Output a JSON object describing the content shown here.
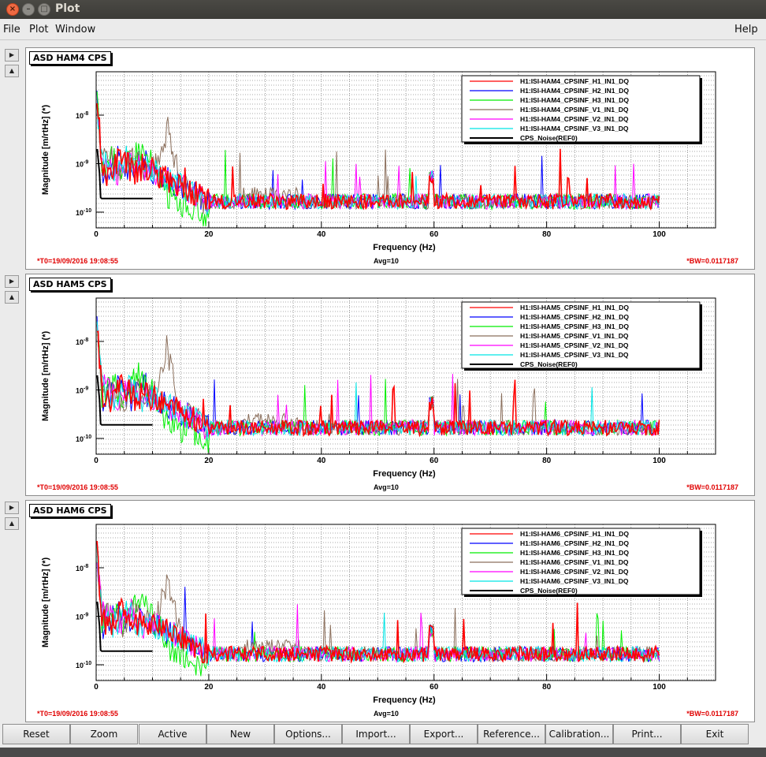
{
  "window": {
    "title": "Plot"
  },
  "menu": {
    "file": "File",
    "plot": "Plot",
    "window": "Window",
    "help": "Help"
  },
  "colors": {
    "H1": "#ff0000",
    "H2": "#0000ff",
    "H3": "#00ee00",
    "V1": "#8b6f5c",
    "V2": "#ff00ff",
    "V3": "#00e5e5",
    "REF": "#000000"
  },
  "panels": [
    {
      "title": "ASD HAM4 CPS",
      "t0": "*T0=19/09/2016 19:08:55",
      "avg": "Avg=10",
      "bw": "*BW=0.0117187",
      "legend": [
        "H1:ISI-HAM4_CPSINF_H1_IN1_DQ",
        "H1:ISI-HAM4_CPSINF_H2_IN1_DQ",
        "H1:ISI-HAM4_CPSINF_H3_IN1_DQ",
        "H1:ISI-HAM4_CPSINF_V1_IN1_DQ",
        "H1:ISI-HAM4_CPSINF_V2_IN1_DQ",
        "H1:ISI-HAM4_CPSINF_V3_IN1_DQ",
        "CPS_Noise(REF0)"
      ]
    },
    {
      "title": "ASD HAM5 CPS",
      "t0": "*T0=19/09/2016 19:08:55",
      "avg": "Avg=10",
      "bw": "*BW=0.0117187",
      "legend": [
        "H1:ISI-HAM5_CPSINF_H1_IN1_DQ",
        "H1:ISI-HAM5_CPSINF_H2_IN1_DQ",
        "H1:ISI-HAM5_CPSINF_H3_IN1_DQ",
        "H1:ISI-HAM5_CPSINF_V1_IN1_DQ",
        "H1:ISI-HAM5_CPSINF_V2_IN1_DQ",
        "H1:ISI-HAM5_CPSINF_V3_IN1_DQ",
        "CPS_Noise(REF0)"
      ]
    },
    {
      "title": "ASD HAM6 CPS",
      "t0": "*T0=19/09/2016 19:08:55",
      "avg": "Avg=10",
      "bw": "*BW=0.0117187",
      "legend": [
        "H1:ISI-HAM6_CPSINF_H1_IN1_DQ",
        "H1:ISI-HAM6_CPSINF_H2_IN1_DQ",
        "H1:ISI-HAM6_CPSINF_H3_IN1_DQ",
        "H1:ISI-HAM6_CPSINF_V1_IN1_DQ",
        "H1:ISI-HAM6_CPSINF_V2_IN1_DQ",
        "H1:ISI-HAM6_CPSINF_V3_IN1_DQ",
        "CPS_Noise(REF0)"
      ]
    }
  ],
  "axes": {
    "xlabel": "Frequency (Hz)",
    "ylabel": "Magnitude [m/rtHz] (*)",
    "xticks": [
      "0",
      "20",
      "40",
      "60",
      "80",
      "100"
    ],
    "ytick_base": "10",
    "ytick_exps": [
      "-8",
      "-9",
      "-10"
    ]
  },
  "chart_data": [
    {
      "type": "line",
      "title": "ASD HAM4 CPS",
      "xlabel": "Frequency (Hz)",
      "ylabel": "Magnitude [m/rtHz] (*)",
      "xlim": [
        0,
        110
      ],
      "ylog": true,
      "grid": true,
      "legend_position": "top-right",
      "series": [
        {
          "name": "H1:ISI-HAM4_CPSINF_H1_IN1_DQ",
          "x": [
            0.2,
            2,
            5,
            8,
            10,
            12,
            15,
            18,
            20,
            30,
            40,
            60,
            80,
            100
          ],
          "y": [
            4e-08,
            8e-10,
            7e-10,
            5e-10,
            3e-10,
            2e-10,
            2e-10,
            2e-10,
            1.5e-10,
            1.5e-10,
            1.5e-10,
            1.5e-10,
            1.5e-10,
            1.5e-10
          ]
        },
        {
          "name": "CPS_Noise(REF0)",
          "x": [
            0.2,
            1,
            10,
            20
          ],
          "y": [
            2e-09,
            2e-10,
            2e-10,
            2e-10
          ]
        }
      ]
    },
    {
      "type": "line",
      "title": "ASD HAM5 CPS",
      "xlabel": "Frequency (Hz)",
      "ylabel": "Magnitude [m/rtHz] (*)",
      "xlim": [
        0,
        110
      ],
      "ylog": true,
      "grid": true,
      "legend_position": "top-right",
      "series": [
        {
          "name": "H1:ISI-HAM5_CPSINF_H1_IN1_DQ",
          "x": [
            0.2,
            2,
            5,
            8,
            10,
            12,
            15,
            18,
            20,
            30,
            40,
            60,
            80,
            100
          ],
          "y": [
            4e-08,
            8e-10,
            7e-10,
            5e-10,
            3e-10,
            2e-10,
            2e-10,
            2e-10,
            1.5e-10,
            1.5e-10,
            1.5e-10,
            1.5e-10,
            1.5e-10,
            1.5e-10
          ]
        },
        {
          "name": "CPS_Noise(REF0)",
          "x": [
            0.2,
            1,
            10,
            20
          ],
          "y": [
            2e-09,
            2e-10,
            2e-10,
            2e-10
          ]
        }
      ]
    },
    {
      "type": "line",
      "title": "ASD HAM6 CPS",
      "xlabel": "Frequency (Hz)",
      "ylabel": "Magnitude [m/rtHz] (*)",
      "xlim": [
        0,
        110
      ],
      "ylog": true,
      "grid": true,
      "legend_position": "top-right",
      "series": [
        {
          "name": "H1:ISI-HAM6_CPSINF_H1_IN1_DQ",
          "x": [
            0.2,
            2,
            5,
            8,
            10,
            12,
            15,
            18,
            20,
            30,
            40,
            60,
            80,
            100
          ],
          "y": [
            4e-08,
            8e-10,
            7e-10,
            5e-10,
            3e-10,
            2e-10,
            2e-10,
            2e-10,
            1.5e-10,
            1.5e-10,
            1.5e-10,
            1.5e-10,
            1.5e-10,
            1.5e-10
          ]
        },
        {
          "name": "CPS_Noise(REF0)",
          "x": [
            0.2,
            1,
            10,
            20
          ],
          "y": [
            2e-09,
            2e-10,
            2e-10,
            2e-10
          ]
        }
      ]
    }
  ],
  "buttons": [
    "Reset",
    "Zoom",
    "Active",
    "New",
    "Options...",
    "Import...",
    "Export...",
    "Reference...",
    "Calibration...",
    "Print...",
    "Exit"
  ]
}
